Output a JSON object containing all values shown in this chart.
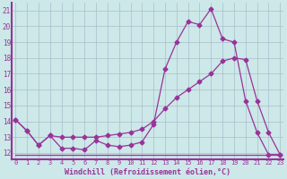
{
  "line1_x": [
    0,
    1,
    2,
    3,
    4,
    5,
    6,
    7,
    8,
    9,
    10,
    11,
    12,
    13,
    14,
    15,
    16,
    17,
    18,
    19,
    20,
    21,
    22,
    23
  ],
  "line1_y": [
    14.1,
    13.4,
    12.5,
    13.1,
    12.3,
    12.3,
    12.2,
    12.8,
    12.5,
    12.4,
    12.5,
    12.7,
    13.8,
    17.3,
    19.0,
    20.3,
    20.1,
    21.1,
    19.2,
    19.0,
    15.3,
    13.3,
    11.9,
    11.9
  ],
  "line2_x": [
    0,
    1,
    2,
    3,
    4,
    5,
    6,
    7,
    8,
    9,
    10,
    11,
    12,
    13,
    14,
    15,
    16,
    17,
    18,
    19,
    20,
    21,
    22,
    23
  ],
  "line2_y": [
    14.1,
    13.4,
    12.5,
    13.1,
    13.0,
    13.0,
    13.0,
    13.0,
    13.1,
    13.2,
    13.3,
    13.5,
    14.0,
    14.8,
    15.5,
    16.0,
    16.5,
    17.0,
    17.8,
    18.0,
    17.9,
    15.3,
    13.3,
    11.9
  ],
  "line3_x": [
    0,
    10,
    22,
    23
  ],
  "line3_y": [
    11.9,
    11.9,
    11.9,
    11.9
  ],
  "color": "#993399",
  "marker": "D",
  "markersize": 2.5,
  "linewidth": 0.9,
  "xlabel": "Windchill (Refroidissement éolien,°C)",
  "ylabel_ticks": [
    12,
    13,
    14,
    15,
    16,
    17,
    18,
    19,
    20,
    21
  ],
  "xlim": [
    -0.3,
    23.3
  ],
  "ylim": [
    11.6,
    21.5
  ],
  "bg_color": "#cce8e8",
  "grid_color": "#aabccc",
  "tick_label_color": "#993399",
  "axis_label_color": "#993399",
  "spine_color": "#993399"
}
